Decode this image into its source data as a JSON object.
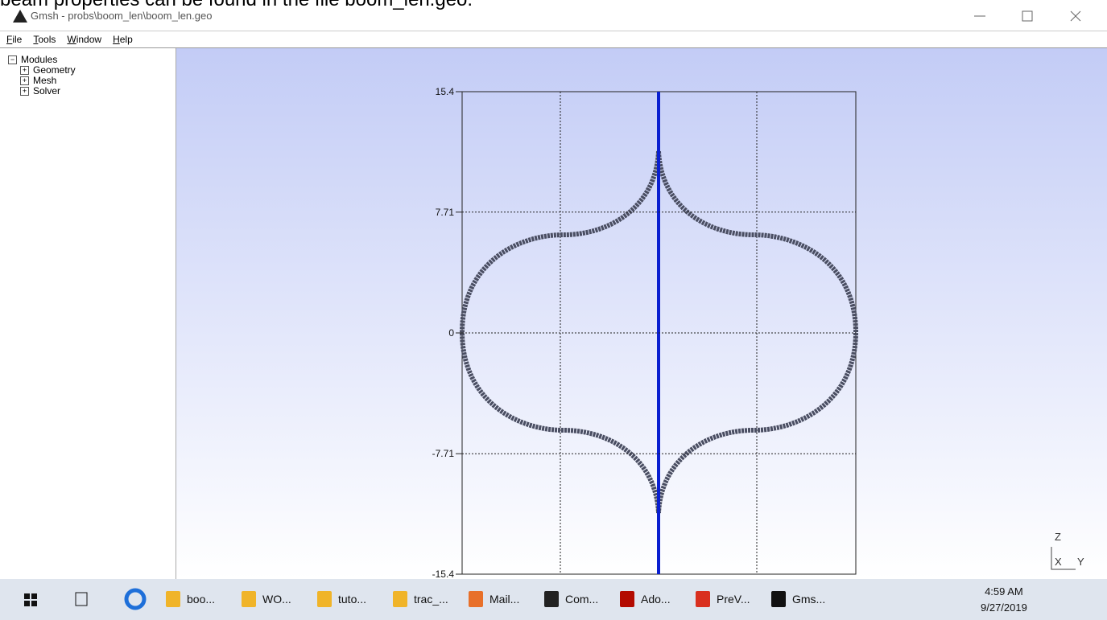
{
  "top_text": "beam properties can be found in the file boom_len.geo.",
  "window": {
    "title": "Gmsh - probs\\boom_len\\boom_len.geo"
  },
  "menu": [
    "File",
    "Tools",
    "Window",
    "Help"
  ],
  "tree": {
    "root": "Modules",
    "children": [
      "Geometry",
      "Mesh",
      "Solver"
    ]
  },
  "viewport": {
    "yticks": [
      15.4,
      7.71,
      0,
      -7.71,
      -15.4
    ],
    "axis_labels": [
      "Z",
      "X",
      "Y"
    ]
  },
  "taskbar": {
    "items": [
      "boo...",
      "WO...",
      "tuto...",
      "trac_...",
      "Mail...",
      "Com...",
      "Ado...",
      "PreV...",
      "Gms..."
    ],
    "time": "4:59 AM",
    "date": "9/27/2019"
  }
}
